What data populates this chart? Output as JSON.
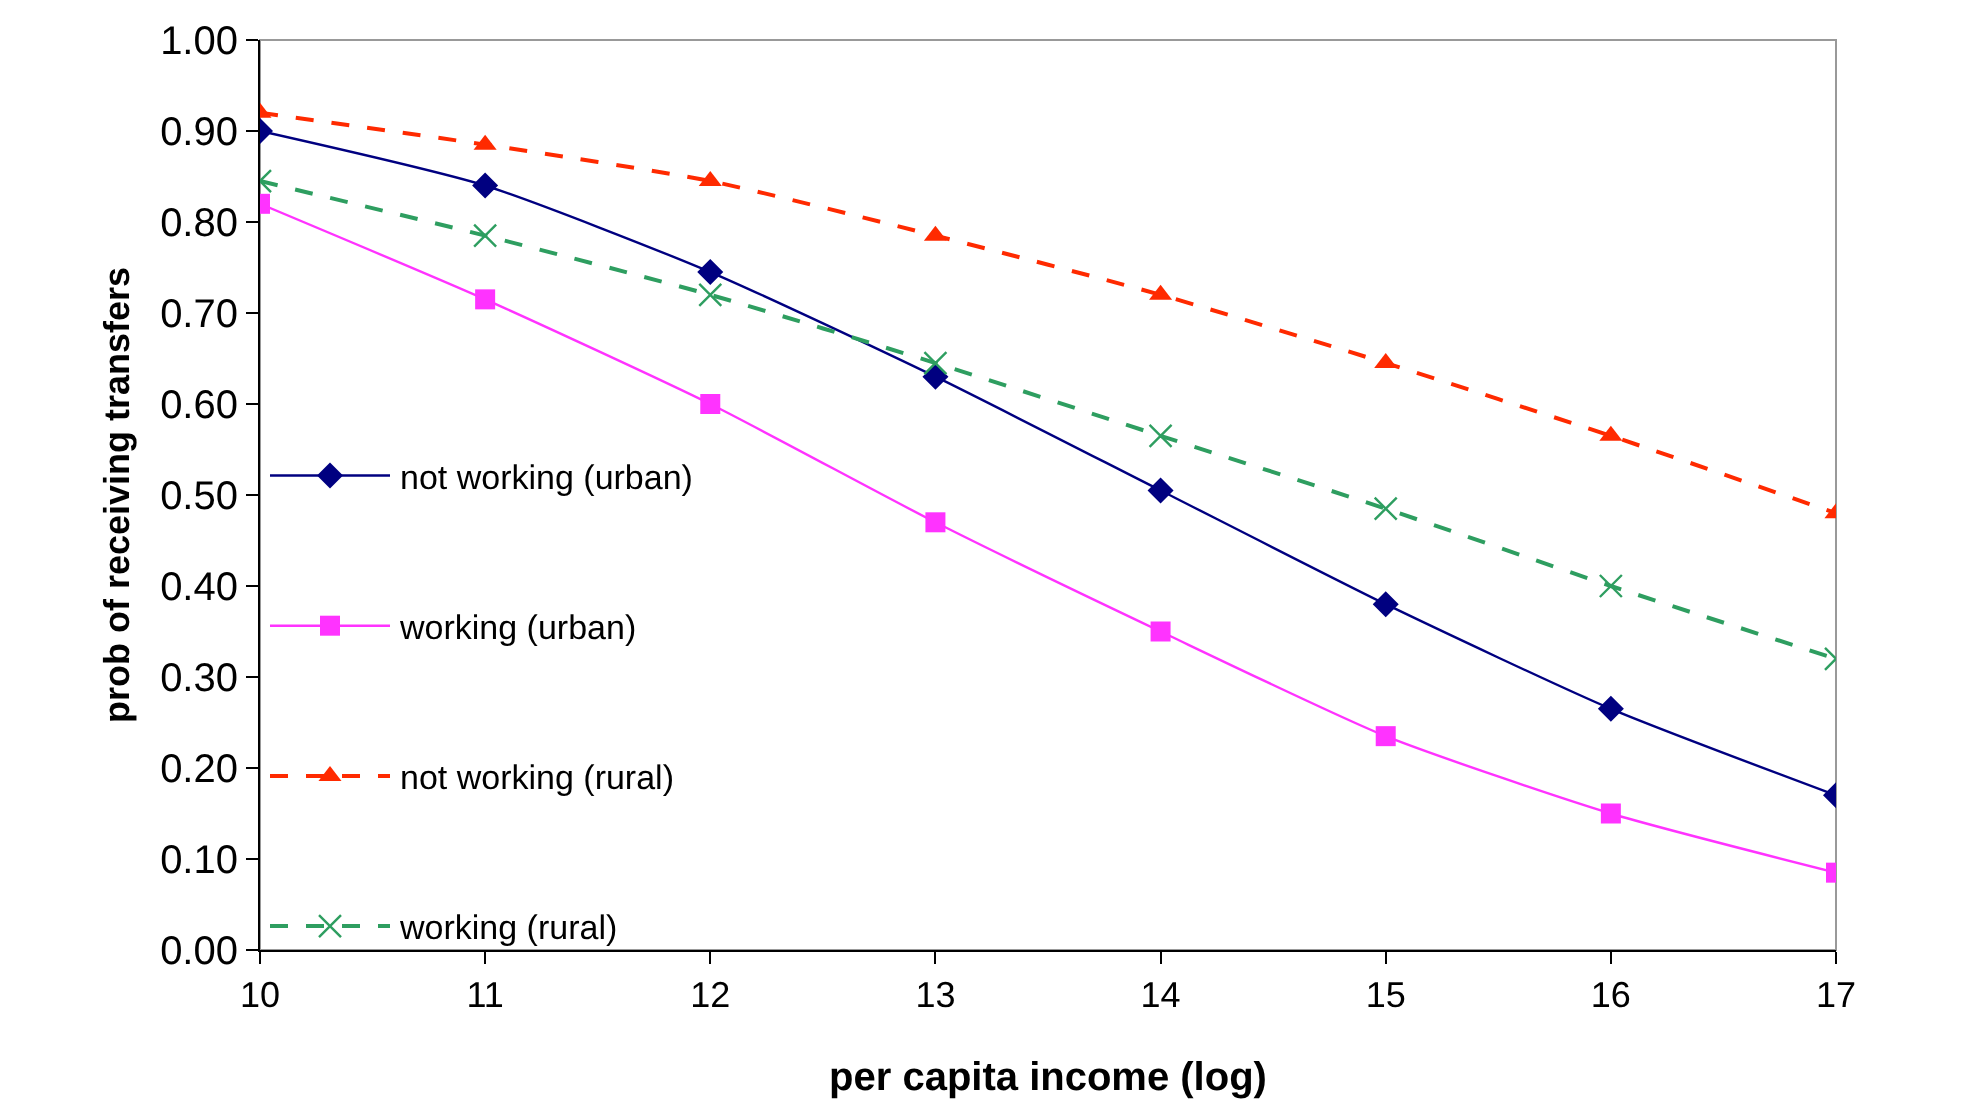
{
  "chart_data": {
    "type": "line",
    "xlabel": "per capita income (log)",
    "ylabel": "prob of receiving transfers",
    "x": [
      10,
      11,
      12,
      13,
      14,
      15,
      16,
      17
    ],
    "series": [
      {
        "name": "not working (urban)",
        "color": "#000080",
        "marker": "diamond",
        "line_style": "solid",
        "values": [
          0.9,
          0.84,
          0.745,
          0.63,
          0.505,
          0.38,
          0.265,
          0.17
        ]
      },
      {
        "name": "working (urban)",
        "color": "#ff33ff",
        "marker": "square",
        "line_style": "solid",
        "values": [
          0.82,
          0.715,
          0.6,
          0.47,
          0.35,
          0.235,
          0.15,
          0.085
        ]
      },
      {
        "name": "not working (rural)",
        "color": "#ff2a00",
        "marker": "triangle",
        "line_style": "dashed",
        "values": [
          0.92,
          0.885,
          0.845,
          0.785,
          0.72,
          0.645,
          0.565,
          0.48
        ]
      },
      {
        "name": "working (rural)",
        "color": "#2e9e60",
        "marker": "cross",
        "line_style": "dashed",
        "values": [
          0.845,
          0.785,
          0.72,
          0.645,
          0.565,
          0.485,
          0.4,
          0.32
        ]
      }
    ],
    "xlim": [
      10,
      17
    ],
    "xticks": [
      10,
      11,
      12,
      13,
      14,
      15,
      16,
      17
    ],
    "ylim": [
      0,
      1
    ],
    "yticks": [
      {
        "value": 0,
        "label": "0.00"
      },
      {
        "value": 0.1,
        "label": "0.10"
      },
      {
        "value": 0.2,
        "label": "0.20"
      },
      {
        "value": 0.3,
        "label": "0.30"
      },
      {
        "value": 0.4,
        "label": "0.40"
      },
      {
        "value": 0.5,
        "label": "0.50"
      },
      {
        "value": 0.6,
        "label": "0.60"
      },
      {
        "value": 0.7,
        "label": "0.70"
      },
      {
        "value": 0.8,
        "label": "0.80"
      },
      {
        "value": 0.9,
        "label": "0.90"
      },
      {
        "value": 1,
        "label": "1.00"
      }
    ],
    "grid": false,
    "legend": "left"
  }
}
